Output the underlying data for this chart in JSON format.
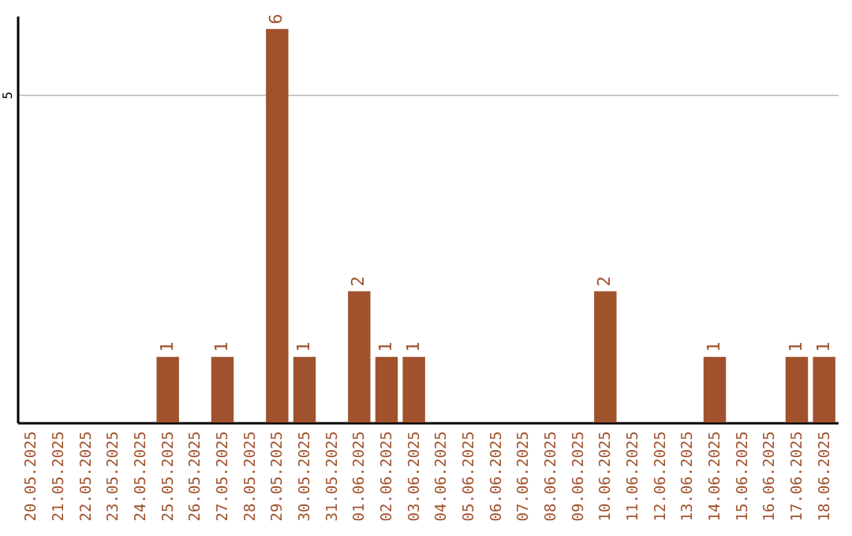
{
  "chart_data": {
    "type": "bar",
    "categories": [
      "20.05.2025",
      "21.05.2025",
      "22.05.2025",
      "23.05.2025",
      "24.05.2025",
      "25.05.2025",
      "26.05.2025",
      "27.05.2025",
      "28.05.2025",
      "29.05.2025",
      "30.05.2025",
      "31.05.2025",
      "01.06.2025",
      "02.06.2025",
      "03.06.2025",
      "04.06.2025",
      "05.06.2025",
      "06.06.2025",
      "07.06.2025",
      "08.06.2025",
      "09.06.2025",
      "10.06.2025",
      "11.06.2025",
      "12.06.2025",
      "13.06.2025",
      "14.06.2025",
      "15.06.2025",
      "16.06.2025",
      "17.06.2025",
      "18.06.2025"
    ],
    "values": [
      0,
      0,
      0,
      0,
      0,
      1,
      0,
      1,
      0,
      6,
      1,
      0,
      2,
      1,
      1,
      0,
      0,
      0,
      0,
      0,
      0,
      2,
      0,
      0,
      0,
      1,
      0,
      0,
      1,
      1
    ],
    "value_labels": [
      null,
      null,
      null,
      null,
      null,
      "1",
      null,
      "1",
      null,
      "6",
      "1",
      null,
      "2",
      "1",
      "1",
      null,
      null,
      null,
      null,
      null,
      null,
      "2",
      null,
      null,
      null,
      "1",
      null,
      null,
      "1",
      "1"
    ],
    "color": "#a0522d",
    "ylim": [
      0,
      6.2
    ],
    "yticks": [
      5
    ],
    "grid": "y"
  }
}
